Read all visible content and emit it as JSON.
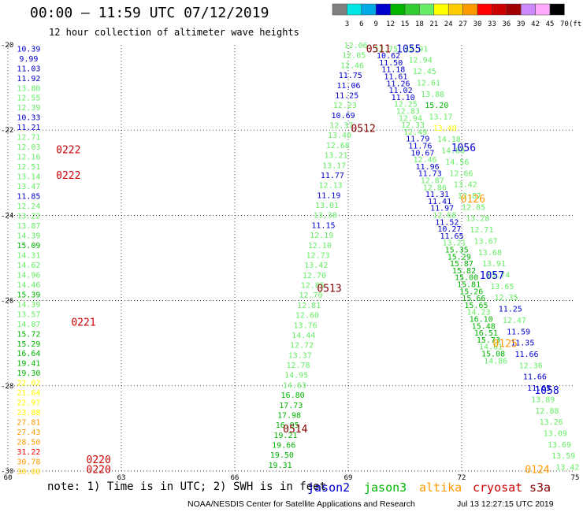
{
  "header": {
    "title": "00:00 – 11:59 UTC 07/12/2019",
    "subtitle": "12 hour collection of altimeter wave heights"
  },
  "colorbar": {
    "ticks": [
      "3",
      "6",
      "9",
      "12",
      "15",
      "18",
      "21",
      "24",
      "27",
      "30",
      "33",
      "36",
      "39",
      "42",
      "45",
      "70",
      "(ft)"
    ],
    "colors": [
      "#7f7f7f",
      "#00e5e5",
      "#00a8e6",
      "#0000cc",
      "#00b400",
      "#33cc33",
      "#66ee66",
      "#ffff00",
      "#ffcc00",
      "#ff9900",
      "#ff0000",
      "#cc0000",
      "#a00000",
      "#cc88ff",
      "#ffaaff",
      "#000000"
    ]
  },
  "footer": {
    "note": "note: 1) Time is in UTC; 2) SWH is in feet",
    "credit": "NOAA/NESDIS Center for Satellite Applications and Research",
    "timestamp": "Jul 13 12:27:15 UTC 2019"
  },
  "legend": [
    {
      "name": "jason2",
      "color": "#0000cc"
    },
    {
      "name": "jason3",
      "color": "#00b400"
    },
    {
      "name": "altika",
      "color": "#ff9900"
    },
    {
      "name": "cryosat",
      "color": "#cc0000"
    },
    {
      "name": "s3a",
      "color": "#880000"
    }
  ],
  "chart_data": {
    "type": "scatter",
    "xlim": [
      60,
      75
    ],
    "ylim": [
      -30,
      -20
    ],
    "x_ticks": [
      60,
      63,
      66,
      69,
      72,
      75
    ],
    "y_ticks": [
      -20,
      -22,
      -24,
      -26,
      -28,
      -30
    ],
    "tracks": [
      {
        "id": "trackA",
        "x0": 60.55,
        "x1": 60.55,
        "y0": -20.08,
        "y1": -30.0,
        "values": [
          [
            "10.39",
            "#0000cc"
          ],
          [
            "9.99",
            "#0000cc"
          ],
          [
            "11.03",
            "#0000cc"
          ],
          [
            "11.92",
            "#0000cc"
          ],
          [
            "13.80",
            "#66ee66"
          ],
          [
            "12.55",
            "#66ee66"
          ],
          [
            "12.39",
            "#66ee66"
          ],
          [
            "10.33",
            "#0000cc"
          ],
          [
            "11.21",
            "#0000cc"
          ],
          [
            "12.71",
            "#66ee66"
          ],
          [
            "12.03",
            "#66ee66"
          ],
          [
            "12.16",
            "#66ee66"
          ],
          [
            "12.51",
            "#66ee66"
          ],
          [
            "13.14",
            "#66ee66"
          ],
          [
            "13.47",
            "#66ee66"
          ],
          [
            "11.85",
            "#0000cc"
          ],
          [
            "12.24",
            "#66ee66"
          ],
          [
            "13.22",
            "#66ee66"
          ],
          [
            "13.87",
            "#66ee66"
          ],
          [
            "14.39",
            "#66ee66"
          ],
          [
            "15.09",
            "#00b400"
          ],
          [
            "14.31",
            "#66ee66"
          ],
          [
            "14.62",
            "#66ee66"
          ],
          [
            "14.96",
            "#66ee66"
          ],
          [
            "14.46",
            "#66ee66"
          ],
          [
            "15.39",
            "#00b400"
          ],
          [
            "14.39",
            "#66ee66"
          ],
          [
            "13.57",
            "#66ee66"
          ],
          [
            "14.87",
            "#66ee66"
          ],
          [
            "15.72",
            "#00b400"
          ],
          [
            "15.29",
            "#00b400"
          ],
          [
            "16.64",
            "#00b400"
          ],
          [
            "19.41",
            "#00b400"
          ],
          [
            "19.30",
            "#00b400"
          ],
          [
            "22.02",
            "#ffff00"
          ],
          [
            "21.64",
            "#ffff00"
          ],
          [
            "22.97",
            "#ffff00"
          ],
          [
            "23.88",
            "#ffff00"
          ],
          [
            "27.81",
            "#ff9900"
          ],
          [
            "27.43",
            "#ff9900"
          ],
          [
            "28.50",
            "#ff9900"
          ],
          [
            "31.22",
            "#ff0000"
          ],
          [
            "30.78",
            "#ff9900"
          ],
          [
            "30.00",
            "#ffcc00"
          ]
        ]
      },
      {
        "id": "trackB",
        "x0": 69.2,
        "x1": 67.2,
        "y0": -20.0,
        "y1": -29.85,
        "values": [
          [
            "12.06",
            "#66ee66"
          ],
          [
            "12.05",
            "#66ee66"
          ],
          [
            "12.46",
            "#66ee66"
          ],
          [
            "11.75",
            "#0000cc"
          ],
          [
            "11.06",
            "#0000cc"
          ],
          [
            "11.25",
            "#0000cc"
          ],
          [
            "12.23",
            "#66ee66"
          ],
          [
            "10.69",
            "#0000cc"
          ],
          [
            "12.37",
            "#66ee66"
          ],
          [
            "13.40",
            "#66ee66"
          ],
          [
            "12.68",
            "#66ee66"
          ],
          [
            "13.21",
            "#66ee66"
          ],
          [
            "13.17",
            "#66ee66"
          ],
          [
            "11.77",
            "#0000cc"
          ],
          [
            "12.13",
            "#66ee66"
          ],
          [
            "11.19",
            "#0000cc"
          ],
          [
            "13.01",
            "#66ee66"
          ],
          [
            "13.38",
            "#66ee66"
          ],
          [
            "11.15",
            "#0000cc"
          ],
          [
            "12.19",
            "#66ee66"
          ],
          [
            "12.10",
            "#66ee66"
          ],
          [
            "12.73",
            "#66ee66"
          ],
          [
            "13.42",
            "#66ee66"
          ],
          [
            "12.70",
            "#66ee66"
          ],
          [
            "12.85",
            "#66ee66"
          ],
          [
            "12.70",
            "#66ee66"
          ],
          [
            "12.81",
            "#66ee66"
          ],
          [
            "12.60",
            "#66ee66"
          ],
          [
            "13.76",
            "#66ee66"
          ],
          [
            "14.44",
            "#66ee66"
          ],
          [
            "12.72",
            "#66ee66"
          ],
          [
            "13.37",
            "#66ee66"
          ],
          [
            "12.78",
            "#66ee66"
          ],
          [
            "14.95",
            "#66ee66"
          ],
          [
            "14.63",
            "#66ee66"
          ],
          [
            "16.80",
            "#00b400"
          ],
          [
            "17.73",
            "#00b400"
          ],
          [
            "17.98",
            "#00b400"
          ],
          [
            "16.95",
            "#00b400"
          ],
          [
            "19.21",
            "#00b400"
          ],
          [
            "19.66",
            "#00b400"
          ],
          [
            "19.50",
            "#00b400"
          ],
          [
            "19.31",
            "#00b400"
          ]
        ]
      },
      {
        "id": "trackC",
        "x0": 70.0,
        "x1": 72.9,
        "y0": -20.08,
        "y1": -27.4,
        "values": [
          [
            "12.75",
            "#66ee66"
          ],
          [
            "10.62",
            "#0000cc"
          ],
          [
            "11.50",
            "#0000cc"
          ],
          [
            "11.18",
            "#0000cc"
          ],
          [
            "11.61",
            "#0000cc"
          ],
          [
            "11.26",
            "#0000cc"
          ],
          [
            "11.02",
            "#0000cc"
          ],
          [
            "11.10",
            "#0000cc"
          ],
          [
            "12.25",
            "#66ee66"
          ],
          [
            "12.83",
            "#66ee66"
          ],
          [
            "12.94",
            "#66ee66"
          ],
          [
            "12.33",
            "#66ee66"
          ],
          [
            "12.49",
            "#66ee66"
          ],
          [
            "11.79",
            "#0000cc"
          ],
          [
            "11.76",
            "#0000cc"
          ],
          [
            "10.67",
            "#0000cc"
          ],
          [
            "12.46",
            "#66ee66"
          ],
          [
            "11.96",
            "#0000cc"
          ],
          [
            "11.73",
            "#0000cc"
          ],
          [
            "12.87",
            "#66ee66"
          ],
          [
            "12.86",
            "#66ee66"
          ],
          [
            "11.31",
            "#0000cc"
          ],
          [
            "11.41",
            "#0000cc"
          ],
          [
            "11.97",
            "#0000cc"
          ],
          [
            "12.68",
            "#66ee66"
          ],
          [
            "11.52",
            "#0000cc"
          ],
          [
            "10.27",
            "#0000cc"
          ],
          [
            "11.65",
            "#0000cc"
          ],
          [
            "13.21",
            "#66ee66"
          ],
          [
            "15.35",
            "#00b400"
          ],
          [
            "15.29",
            "#00b400"
          ],
          [
            "15.87",
            "#00b400"
          ],
          [
            "15.82",
            "#00b400"
          ],
          [
            "15.00",
            "#00b400"
          ],
          [
            "15.81",
            "#00b400"
          ],
          [
            "15.26",
            "#00b400"
          ],
          [
            "15.66",
            "#00b400"
          ],
          [
            "15.65",
            "#00b400"
          ],
          [
            "14.23",
            "#66ee66"
          ],
          [
            "16.10",
            "#00b400"
          ],
          [
            "15.48",
            "#00b400"
          ],
          [
            "16.51",
            "#00b400"
          ],
          [
            "15.73",
            "#00b400"
          ],
          [
            "14.61",
            "#66ee66"
          ],
          [
            "15.08",
            "#00b400"
          ],
          [
            "14.86",
            "#66ee66"
          ]
        ]
      },
      {
        "id": "trackD",
        "x0": 70.8,
        "x1": 74.8,
        "y0": -20.08,
        "y1": -29.9,
        "values": [
          [
            "12.91",
            "#66ee66"
          ],
          [
            "12.94",
            "#66ee66"
          ],
          [
            "12.45",
            "#66ee66"
          ],
          [
            "12.61",
            "#66ee66"
          ],
          [
            "13.88",
            "#66ee66"
          ],
          [
            "15.20",
            "#00b400"
          ],
          [
            "13.17",
            "#66ee66"
          ],
          [
            "13.40",
            "#ffff00"
          ],
          [
            "14.18",
            "#66ee66"
          ],
          [
            "14.88",
            "#66ee66"
          ],
          [
            "14.56",
            "#66ee66"
          ],
          [
            "12.66",
            "#66ee66"
          ],
          [
            "13.42",
            "#66ee66"
          ],
          [
            "12.87",
            "#66ee66"
          ],
          [
            "12.85",
            "#66ee66"
          ],
          [
            "13.28",
            "#66ee66"
          ],
          [
            "12.71",
            "#66ee66"
          ],
          [
            "13.67",
            "#66ee66"
          ],
          [
            "13.68",
            "#66ee66"
          ],
          [
            "13.91",
            "#66ee66"
          ],
          [
            "13.74",
            "#66ee66"
          ],
          [
            "13.65",
            "#66ee66"
          ],
          [
            "12.35",
            "#66ee66"
          ],
          [
            "11.25",
            "#0000cc"
          ],
          [
            "12.47",
            "#66ee66"
          ],
          [
            "11.59",
            "#0000cc"
          ],
          [
            "11.35",
            "#0000cc"
          ],
          [
            "11.66",
            "#0000cc"
          ],
          [
            "12.36",
            "#66ee66"
          ],
          [
            "11.66",
            "#0000cc"
          ],
          [
            "11.65",
            "#0000cc"
          ],
          [
            "13.89",
            "#66ee66"
          ],
          [
            "12.88",
            "#66ee66"
          ],
          [
            "13.26",
            "#66ee66"
          ],
          [
            "13.09",
            "#66ee66"
          ],
          [
            "13.69",
            "#66ee66"
          ],
          [
            "13.59",
            "#66ee66"
          ],
          [
            "13.42",
            "#66ee66"
          ]
        ]
      }
    ],
    "time_labels": [
      {
        "text": "0222",
        "x": 61.6,
        "y": -22.45,
        "color": "#cc0000"
      },
      {
        "text": "0222",
        "x": 61.6,
        "y": -23.05,
        "color": "#cc0000"
      },
      {
        "text": "0221",
        "x": 62.0,
        "y": -26.5,
        "color": "#cc0000"
      },
      {
        "text": "0220",
        "x": 62.4,
        "y": -29.72,
        "color": "#cc0000"
      },
      {
        "text": "0220",
        "x": 62.4,
        "y": -29.95,
        "color": "#cc0000"
      },
      {
        "text": "0511",
        "x": 69.8,
        "y": -20.08,
        "color": "#880000"
      },
      {
        "text": "1055",
        "x": 70.6,
        "y": -20.08,
        "color": "#0000cc"
      },
      {
        "text": "0512",
        "x": 69.4,
        "y": -21.95,
        "color": "#880000"
      },
      {
        "text": "1056",
        "x": 72.05,
        "y": -22.4,
        "color": "#0000cc"
      },
      {
        "text": "0126",
        "x": 72.3,
        "y": -23.6,
        "color": "#ff9900"
      },
      {
        "text": "0513",
        "x": 68.5,
        "y": -25.7,
        "color": "#880000"
      },
      {
        "text": "1057",
        "x": 72.8,
        "y": -25.4,
        "color": "#0000cc"
      },
      {
        "text": "0125",
        "x": 73.15,
        "y": -27.0,
        "color": "#ff9900"
      },
      {
        "text": "1058",
        "x": 74.25,
        "y": -28.1,
        "color": "#0000cc"
      },
      {
        "text": "0514",
        "x": 67.6,
        "y": -29.0,
        "color": "#880000"
      },
      {
        "text": "0124",
        "x": 74.0,
        "y": -29.95,
        "color": "#ff9900"
      }
    ]
  }
}
